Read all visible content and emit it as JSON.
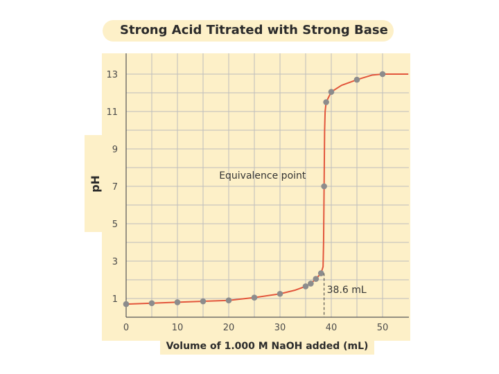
{
  "chart_data": {
    "type": "line",
    "title": "Strong Acid Titrated with Strong Base",
    "xlabel": "Volume of 1.000 M NaOH added (mL)",
    "ylabel": "pH",
    "xlim": [
      0,
      55
    ],
    "ylim": [
      0,
      14
    ],
    "x_ticks": [
      0,
      10,
      20,
      30,
      40,
      50
    ],
    "y_ticks": [
      1,
      3,
      5,
      7,
      9,
      11,
      13
    ],
    "x_gridlines": [
      0,
      5,
      10,
      15,
      20,
      25,
      30,
      35,
      40,
      45,
      50
    ],
    "y_gridlines": [
      1,
      2,
      3,
      4,
      5,
      6,
      7,
      8,
      9,
      10,
      11,
      12,
      13
    ],
    "grid": true,
    "series": [
      {
        "x": [
          0,
          5,
          10,
          15,
          20,
          25,
          30,
          35,
          36,
          37,
          38,
          38.6,
          39,
          40,
          45,
          50
        ],
        "y": [
          0.7,
          0.75,
          0.8,
          0.85,
          0.9,
          1.05,
          1.25,
          1.65,
          1.8,
          2.05,
          2.35,
          7.0,
          11.5,
          12.05,
          12.7,
          13.0
        ]
      }
    ],
    "curve": {
      "x": [
        0,
        5,
        10,
        15,
        20,
        25,
        30,
        33,
        35,
        36,
        37,
        38,
        38.4,
        38.5,
        38.6,
        38.7,
        38.8,
        39,
        40,
        42,
        45,
        48,
        50,
        55
      ],
      "y": [
        0.7,
        0.75,
        0.8,
        0.85,
        0.9,
        1.05,
        1.25,
        1.45,
        1.65,
        1.8,
        2.05,
        2.35,
        2.7,
        4.0,
        7.0,
        10.0,
        11.0,
        11.5,
        12.05,
        12.4,
        12.7,
        12.95,
        13.0,
        13.0
      ]
    },
    "annotations": [
      {
        "text": "Equivalence point",
        "x": 18,
        "y": 7.4
      },
      {
        "text": "38.6 mL",
        "x": 38.6,
        "y": 1.3
      }
    ],
    "colors": {
      "line": "#e2553b",
      "marker": "#8c8c8c",
      "grid": "#bdbdbd",
      "panel": "#fdf0c8"
    }
  }
}
